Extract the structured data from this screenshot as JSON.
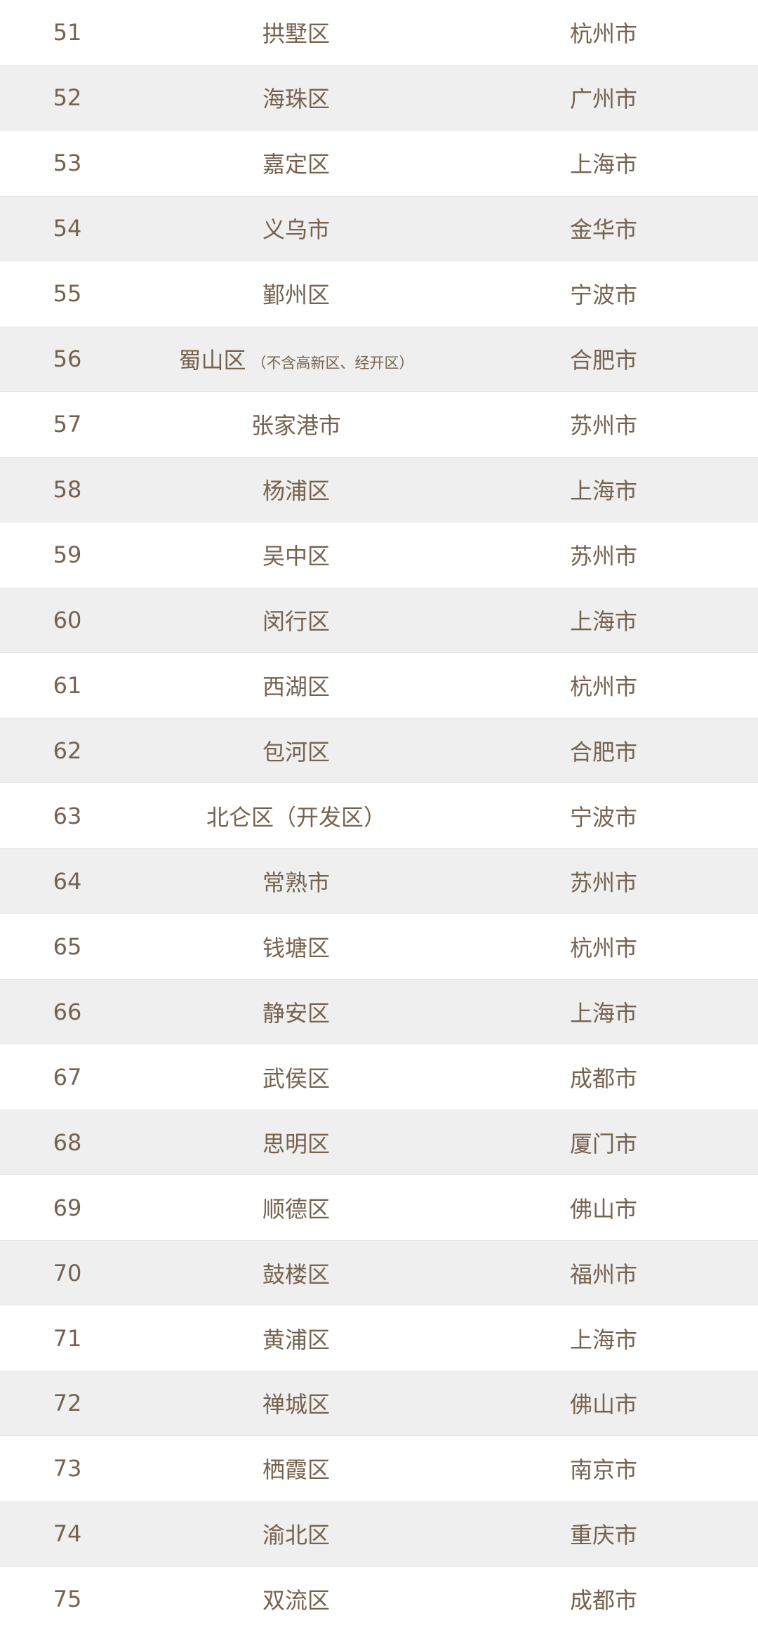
{
  "rows": [
    {
      "rank": "51",
      "district": "拱墅区",
      "note": "",
      "city": "杭州市"
    },
    {
      "rank": "52",
      "district": "海珠区",
      "note": "",
      "city": "广州市"
    },
    {
      "rank": "53",
      "district": "嘉定区",
      "note": "",
      "city": "上海市"
    },
    {
      "rank": "54",
      "district": "义乌市",
      "note": "",
      "city": "金华市"
    },
    {
      "rank": "55",
      "district": "鄞州区",
      "note": "",
      "city": "宁波市"
    },
    {
      "rank": "56",
      "district": "蜀山区",
      "note": "（不含高新区、经开区）",
      "city": "合肥市"
    },
    {
      "rank": "57",
      "district": "张家港市",
      "note": "",
      "city": "苏州市"
    },
    {
      "rank": "58",
      "district": "杨浦区",
      "note": "",
      "city": "上海市"
    },
    {
      "rank": "59",
      "district": "吴中区",
      "note": "",
      "city": "苏州市"
    },
    {
      "rank": "60",
      "district": "闵行区",
      "note": "",
      "city": "上海市"
    },
    {
      "rank": "61",
      "district": "西湖区",
      "note": "",
      "city": "杭州市"
    },
    {
      "rank": "62",
      "district": "包河区",
      "note": "",
      "city": "合肥市"
    },
    {
      "rank": "63",
      "district": "北仑区（开发区）",
      "note": "",
      "city": "宁波市"
    },
    {
      "rank": "64",
      "district": "常熟市",
      "note": "",
      "city": "苏州市"
    },
    {
      "rank": "65",
      "district": "钱塘区",
      "note": "",
      "city": "杭州市"
    },
    {
      "rank": "66",
      "district": "静安区",
      "note": "",
      "city": "上海市"
    },
    {
      "rank": "67",
      "district": "武侯区",
      "note": "",
      "city": "成都市"
    },
    {
      "rank": "68",
      "district": "思明区",
      "note": "",
      "city": "厦门市"
    },
    {
      "rank": "69",
      "district": "顺德区",
      "note": "",
      "city": "佛山市"
    },
    {
      "rank": "70",
      "district": "鼓楼区",
      "note": "",
      "city": "福州市"
    },
    {
      "rank": "71",
      "district": "黄浦区",
      "note": "",
      "city": "上海市"
    },
    {
      "rank": "72",
      "district": "禅城区",
      "note": "",
      "city": "佛山市"
    },
    {
      "rank": "73",
      "district": "栖霞区",
      "note": "",
      "city": "南京市"
    },
    {
      "rank": "74",
      "district": "渝北区",
      "note": "",
      "city": "重庆市"
    },
    {
      "rank": "75",
      "district": "双流区",
      "note": "",
      "city": "成都市"
    }
  ],
  "colors": {
    "text": "#76634f",
    "stripe": "#efefef",
    "background": "#ffffff"
  }
}
